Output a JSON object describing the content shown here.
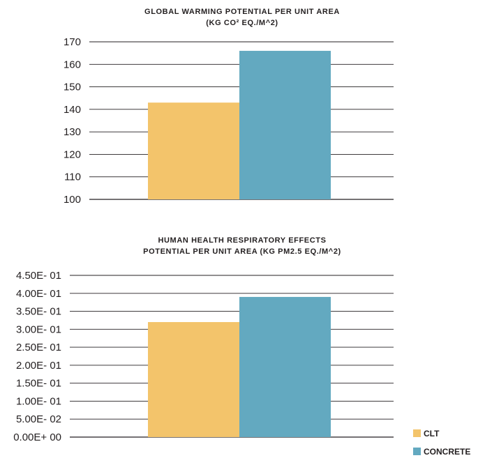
{
  "colors": {
    "clt": "#f3c46b",
    "concrete": "#63a9c0",
    "gridline": "#231f20"
  },
  "legend": [
    {
      "label": "CLT",
      "color": "#f3c46b"
    },
    {
      "label": "CONCRETE",
      "color": "#63a9c0"
    }
  ],
  "chart_data": [
    {
      "type": "bar",
      "title_line1": "GLOBAL WARMING POTENTIAL PER UNIT AREA",
      "title_line2": "(KG CO² EQ./M^2)",
      "categories": [
        "CLT",
        "CONCRETE"
      ],
      "values": [
        143,
        166
      ],
      "ylim": [
        100,
        170
      ],
      "yticks": [
        "170",
        "160",
        "150",
        "140",
        "130",
        "120",
        "110",
        "100"
      ],
      "grid": true
    },
    {
      "type": "bar",
      "title_line1": "HUMAN HEALTH RESPIRATORY EFFECTS",
      "title_line2": "POTENTIAL PER UNIT AREA (KG PM2.5 EQ./M^2)",
      "categories": [
        "CLT",
        "CONCRETE"
      ],
      "values": [
        0.32,
        0.39
      ],
      "ylim": [
        0,
        0.45
      ],
      "yticks": [
        "4.50E- 01",
        "4.00E- 01",
        "3.50E- 01",
        "3.00E- 01",
        "2.50E- 01",
        "2.00E- 01",
        "1.50E- 01",
        "1.00E- 01",
        "5.00E- 02",
        "0.00E+ 00"
      ],
      "grid": true
    }
  ]
}
